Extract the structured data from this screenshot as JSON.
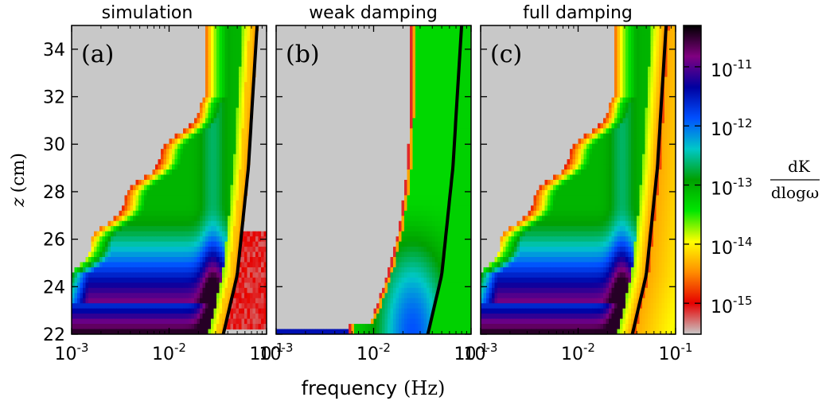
{
  "chart_data": {
    "type": "heatmap",
    "xlabel": "frequency",
    "xlabel_unit": "(Hz)",
    "ylabel_var": "z",
    "ylabel_unit": "(cm)",
    "x_scale": "log",
    "xlim": [
      0.001,
      0.1
    ],
    "ylim": [
      22,
      35
    ],
    "x_ticks": [
      {
        "base": "10",
        "exp": "-3"
      },
      {
        "base": "10",
        "exp": "-2"
      },
      {
        "base": "10",
        "exp": "-1"
      }
    ],
    "y_ticks": [
      "22",
      "24",
      "26",
      "28",
      "30",
      "32",
      "34"
    ],
    "y_tick_values": [
      22,
      24,
      26,
      28,
      30,
      32,
      34
    ],
    "panels": [
      {
        "title": "simulation",
        "label": "(a)",
        "model": "sim"
      },
      {
        "title": "weak damping",
        "label": "(b)",
        "model": "weak"
      },
      {
        "title": "full damping",
        "label": "(c)",
        "model": "full"
      }
    ],
    "colorbar": {
      "label_numerator": "dK",
      "label_denominator": "dlogω",
      "scale": "log",
      "range": [
        3e-16,
        5e-11
      ],
      "ticks": [
        {
          "base": "10",
          "exp": "-15",
          "value": 1e-15
        },
        {
          "base": "10",
          "exp": "-14",
          "value": 1e-14
        },
        {
          "base": "10",
          "exp": "-13",
          "value": 1e-13
        },
        {
          "base": "10",
          "exp": "-12",
          "value": 1e-12
        },
        {
          "base": "10",
          "exp": "-11",
          "value": 1e-11
        }
      ],
      "colormap": [
        "#c8c8c8",
        "#e60000",
        "#ff8c00",
        "#ffff00",
        "#00e600",
        "#00a000",
        "#00c8c8",
        "#0050ff",
        "#0000a0",
        "#800080",
        "#000000"
      ]
    },
    "cutoff_curve": {
      "description_free": true,
      "points": [
        [
          0.036,
          22
        ],
        [
          0.05,
          24.5
        ],
        [
          0.065,
          29
        ],
        [
          0.08,
          35
        ]
      ]
    },
    "colors": {
      "background": "#c8c8c8",
      "curve": "#000000"
    }
  }
}
